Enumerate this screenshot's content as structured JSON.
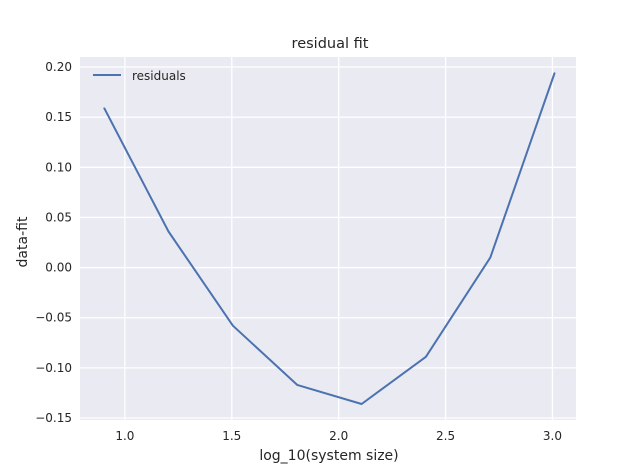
{
  "chart_data": {
    "type": "line",
    "title": "residual fit",
    "xlabel": "log_10(system size)",
    "ylabel": "data-fit",
    "xlim": [
      0.79,
      3.11
    ],
    "ylim": [
      -0.152,
      0.21
    ],
    "xticks": [
      1.0,
      1.5,
      2.0,
      2.5,
      3.0
    ],
    "xtick_labels": [
      "1.0",
      "1.5",
      "2.0",
      "2.5",
      "3.0"
    ],
    "yticks": [
      -0.15,
      -0.1,
      -0.05,
      0.0,
      0.05,
      0.1,
      0.15,
      0.2
    ],
    "ytick_labels": [
      "−0.15",
      "−0.10",
      "−0.05",
      "0.00",
      "0.05",
      "0.10",
      "0.15",
      "0.20"
    ],
    "grid": true,
    "legend_position": "top-left",
    "series": [
      {
        "name": "residuals",
        "color": "#4c72b0",
        "x": [
          0.903,
          1.204,
          1.505,
          1.806,
          2.107,
          2.408,
          2.709,
          3.01
        ],
        "y": [
          0.159,
          0.036,
          -0.058,
          -0.117,
          -0.136,
          -0.089,
          0.01,
          0.194
        ]
      }
    ],
    "colors": {
      "plot_background": "#eaeaf2",
      "grid": "#ffffff",
      "text": "#262626"
    }
  }
}
